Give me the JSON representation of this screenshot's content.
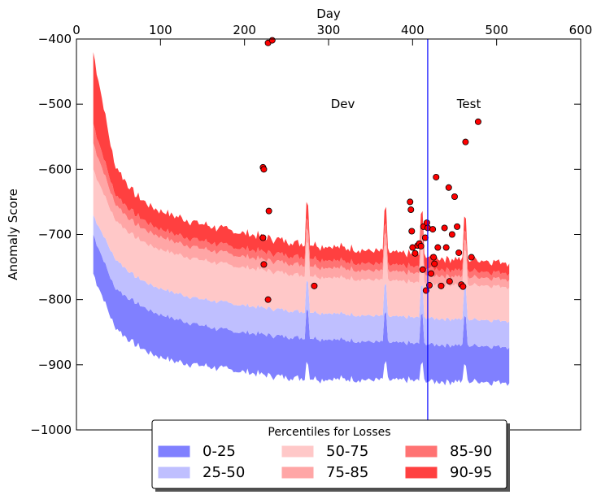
{
  "chart_data": {
    "type": "area",
    "title": "",
    "xlabel": "Day",
    "ylabel": "Anomaly Score",
    "xlim": [
      0,
      600
    ],
    "ylim": [
      -1000,
      -400
    ],
    "x_axis_position": "top",
    "x_ticks": [
      0,
      100,
      200,
      300,
      400,
      500,
      600
    ],
    "y_ticks": [
      -400,
      -500,
      -600,
      -700,
      -800,
      -900,
      -1000
    ],
    "x_tick_labels": [
      "0",
      "100",
      "200",
      "300",
      "400",
      "500",
      "600"
    ],
    "y_tick_labels": [
      "−400",
      "−500",
      "−600",
      "−700",
      "−800",
      "−900",
      "−1000"
    ],
    "x_range": [
      20,
      515
    ],
    "band_boundaries": [
      {
        "name": "p0",
        "values": [
          -760,
          -840,
          -870,
          -885,
          -895,
          -900,
          -905,
          -910,
          -915,
          -918,
          -920,
          -922,
          -922,
          -923,
          -924,
          -924,
          -925,
          -925,
          -925,
          -926,
          -926
        ]
      },
      {
        "name": "p25",
        "values": [
          -700,
          -780,
          -805,
          -820,
          -830,
          -838,
          -845,
          -850,
          -853,
          -856,
          -858,
          -860,
          -862,
          -864,
          -866,
          -867,
          -868,
          -869,
          -870,
          -871,
          -872
        ]
      },
      {
        "name": "p50",
        "values": [
          -670,
          -735,
          -765,
          -780,
          -790,
          -798,
          -803,
          -808,
          -812,
          -815,
          -818,
          -820,
          -822,
          -824,
          -826,
          -827,
          -828,
          -829,
          -830,
          -831,
          -832
        ]
      },
      {
        "name": "p75",
        "values": [
          -600,
          -675,
          -705,
          -720,
          -730,
          -738,
          -744,
          -750,
          -754,
          -758,
          -762,
          -765,
          -767,
          -769,
          -771,
          -773,
          -775,
          -776,
          -777,
          -778,
          -780
        ]
      },
      {
        "name": "p85",
        "values": [
          -560,
          -650,
          -685,
          -700,
          -712,
          -720,
          -727,
          -733,
          -738,
          -742,
          -746,
          -750,
          -752,
          -755,
          -757,
          -759,
          -761,
          -763,
          -765,
          -766,
          -768
        ]
      },
      {
        "name": "p90",
        "values": [
          -530,
          -635,
          -670,
          -688,
          -700,
          -708,
          -715,
          -721,
          -726,
          -730,
          -734,
          -738,
          -741,
          -744,
          -747,
          -749,
          -751,
          -753,
          -755,
          -757,
          -758
        ]
      },
      {
        "name": "p95",
        "values": [
          -420,
          -590,
          -640,
          -660,
          -672,
          -682,
          -690,
          -697,
          -703,
          -708,
          -713,
          -717,
          -720,
          -724,
          -727,
          -730,
          -733,
          -736,
          -738,
          -740,
          -742
        ]
      }
    ],
    "bands": [
      {
        "name": "0-25",
        "color": "#8080ff"
      },
      {
        "name": "25-50",
        "color": "#bfbfff"
      },
      {
        "name": "50-75",
        "color": "#ffc8c8"
      },
      {
        "name": "75-85",
        "color": "#ffa6a6"
      },
      {
        "name": "85-90",
        "color": "#ff7373"
      },
      {
        "name": "90-95",
        "color": "#ff4040"
      }
    ],
    "points": {
      "color": "#ff0000",
      "x": [
        228,
        233,
        222,
        223,
        229,
        222,
        223,
        228,
        283,
        397,
        398,
        400,
        399,
        403,
        406,
        408,
        410,
        412,
        413,
        415,
        416,
        417,
        418,
        420,
        422,
        424,
        425,
        426,
        428,
        430,
        434,
        438,
        440,
        443,
        444,
        447,
        450,
        453,
        455,
        458,
        460,
        463,
        470,
        478
      ],
      "y": [
        -406,
        -402,
        -597,
        -600,
        -664,
        -705,
        -746,
        -800,
        -779,
        -650,
        -662,
        -720,
        -695,
        -729,
        -717,
        -714,
        -718,
        -754,
        -688,
        -705,
        -786,
        -682,
        -690,
        -778,
        -760,
        -692,
        -735,
        -745,
        -612,
        -720,
        -779,
        -690,
        -720,
        -628,
        -772,
        -700,
        -642,
        -688,
        -728,
        -777,
        -780,
        -558,
        -735,
        -527
      ]
    },
    "vline": {
      "x": 418,
      "color": "#0000ff"
    },
    "annotations": [
      {
        "text": "Dev",
        "x": 317,
        "y": -500
      },
      {
        "text": "Test",
        "x": 467,
        "y": -500
      }
    ],
    "legend": {
      "title": "Percentiles for Losses",
      "placement": "bottom-center",
      "columns": 3
    }
  }
}
